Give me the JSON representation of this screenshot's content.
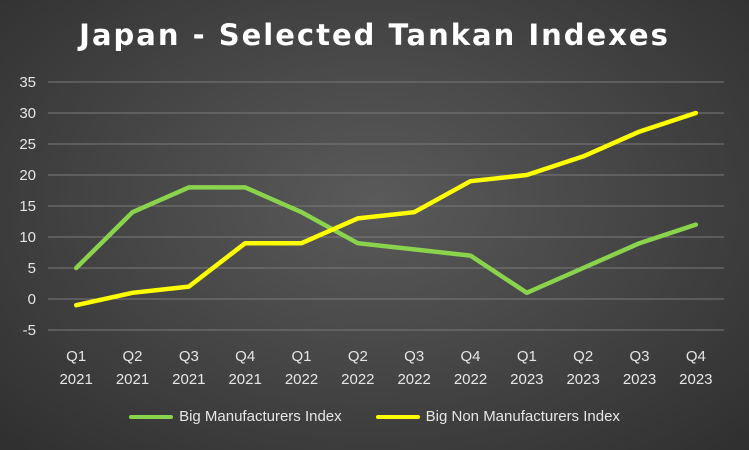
{
  "chart_data": {
    "type": "line",
    "title": "Japan - Selected Tankan Indexes",
    "categories": [
      [
        "Q1",
        "2021"
      ],
      [
        "Q2",
        "2021"
      ],
      [
        "Q3",
        "2021"
      ],
      [
        "Q4",
        "2021"
      ],
      [
        "Q1",
        "2022"
      ],
      [
        "Q2",
        "2022"
      ],
      [
        "Q3",
        "2022"
      ],
      [
        "Q4",
        "2022"
      ],
      [
        "Q1",
        "2023"
      ],
      [
        "Q2",
        "2023"
      ],
      [
        "Q3",
        "2023"
      ],
      [
        "Q4",
        "2023"
      ]
    ],
    "series": [
      {
        "name": "Big Manufacturers Index",
        "color": "#8ad34d",
        "values": [
          5,
          14,
          18,
          18,
          14,
          9,
          8,
          7,
          1,
          5,
          9,
          12
        ]
      },
      {
        "name": "Big Non Manufacturers Index",
        "color": "#ffff00",
        "values": [
          -1,
          1,
          2,
          9,
          9,
          13,
          14,
          19,
          20,
          23,
          27,
          30
        ]
      }
    ],
    "ylim": [
      -5,
      35
    ],
    "yticks": [
      -5,
      0,
      5,
      10,
      15,
      20,
      25,
      30,
      35
    ],
    "xlabel": "",
    "ylabel": "",
    "grid": true,
    "legend_position": "bottom"
  }
}
